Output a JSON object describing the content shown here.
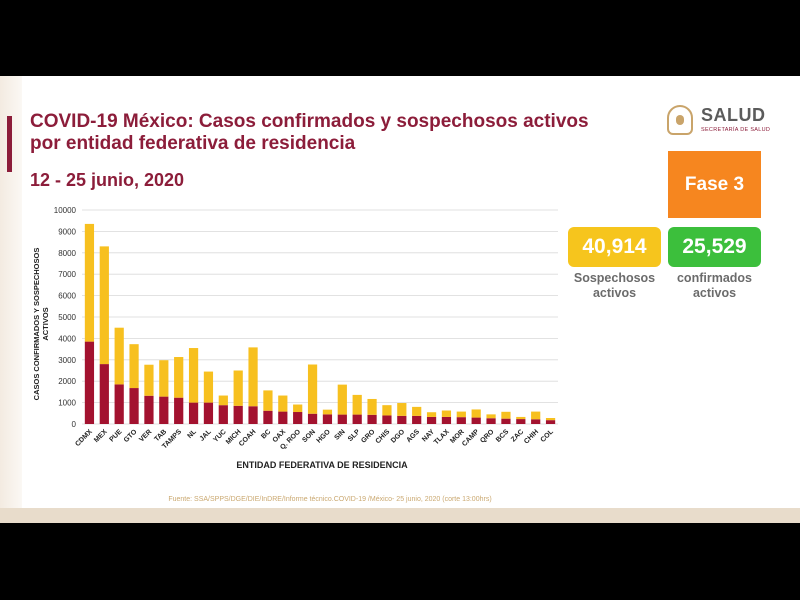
{
  "header": {
    "title_line1": "COVID-19 México: Casos confirmados y sospechosos activos",
    "title_line2": "por entidad federativa de residencia",
    "date_range": "12 - 25 junio, 2020"
  },
  "logo": {
    "text": "SALUD",
    "subtext": "SECRETARÍA DE SALUD"
  },
  "phase": {
    "label": "Fase 3"
  },
  "kpis": {
    "suspected": {
      "value": "40,914",
      "label_line1": "Sospechosos",
      "label_line2": "activos"
    },
    "confirmed": {
      "value": "25,529",
      "label_line1": "confirmados",
      "label_line2": "activos"
    }
  },
  "colors": {
    "brand": "#8c1d3a",
    "confirmed": "#a3122f",
    "suspected": "#f7c01f",
    "phase": "#f6861f",
    "kpi_confirmed": "#3cbf3c"
  },
  "source": "Fuente: SSA/SPPS/DGE/DIE/InDRE/Informe técnico.COVID-19 /México- 25 junio, 2020 (corte 13:00hrs)",
  "chart_data": {
    "type": "bar",
    "stacked": true,
    "xlabel": "ENTIDAD FEDERATIVA DE RESIDENCIA",
    "ylabel": "CASOS CONFIRMADOS Y SOSPECHOSOS ACTIVOS",
    "ylim": [
      0,
      10000
    ],
    "yticks": [
      "0",
      "1000",
      "2000",
      "3000",
      "4000",
      "5000",
      "6000",
      "7000",
      "8000",
      "9000",
      "10000"
    ],
    "grid": true,
    "categories": [
      "CDMX",
      "MEX",
      "PUE",
      "GTO",
      "VER",
      "TAB",
      "TAMPS",
      "NL",
      "JAL",
      "YUC",
      "MICH",
      "COAH",
      "BC",
      "OAX",
      "Q. ROO",
      "SON",
      "HGO",
      "SIN",
      "SLP",
      "GRO",
      "CHIS",
      "DGO",
      "AGS",
      "NAY",
      "TLAX",
      "MOR",
      "CAMP",
      "QRO",
      "BCS",
      "ZAC",
      "CHIH",
      "COL"
    ],
    "series": [
      {
        "key": "confirmed",
        "values": [
          3850,
          2800,
          1850,
          1680,
          1320,
          1280,
          1230,
          1000,
          1000,
          880,
          850,
          830,
          620,
          580,
          560,
          480,
          450,
          440,
          440,
          430,
          400,
          380,
          380,
          330,
          330,
          320,
          300,
          270,
          250,
          230,
          220,
          180
        ]
      },
      {
        "key": "suspected",
        "values": [
          5500,
          5500,
          2650,
          2050,
          1450,
          1700,
          1900,
          2550,
          1450,
          450,
          1650,
          2750,
          950,
          750,
          350,
          2300,
          220,
          1400,
          920,
          740,
          480,
          600,
          420,
          220,
          300,
          260,
          380,
          180,
          320,
          100,
          360,
          100
        ]
      }
    ]
  }
}
